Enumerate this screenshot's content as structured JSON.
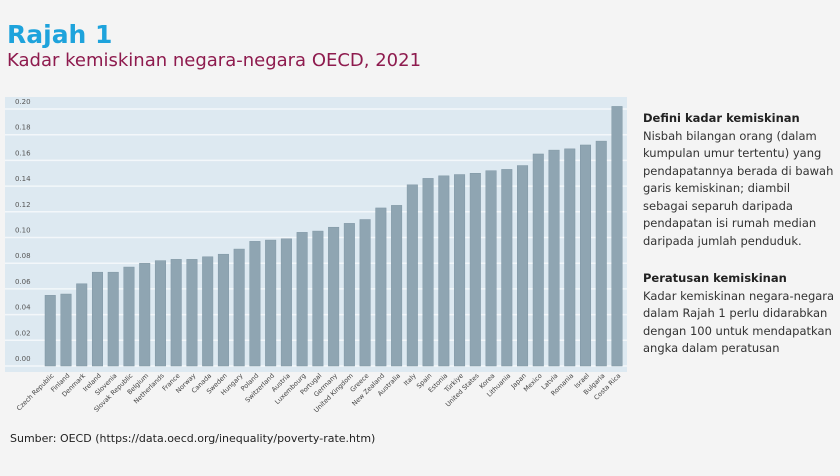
{
  "title": "Rajah 1",
  "subtitle": "Kadar kemiskinan negara-negara OECD, 2021",
  "definition": {
    "heading": "Defini kadar kemiskinan",
    "text": "Nisbah bilangan orang (dalam kumpulan umur tertentu) yang pendapatannya berada di bawah garis kemiskinan; diambil sebagai separuh daripada pendapatan isi rumah median daripada jumlah penduduk."
  },
  "rule": {
    "heading": "Peratusan kemiskinan",
    "text": "Kadar kemiskinan negara-negara dalam Rajah 1 perlu didarabkan dengan 100 untuk mendapatkan angka dalam peratusan"
  },
  "source": "Sumber: OECD (https://data.oecd.org/inequality/poverty-rate.htm)",
  "chart_data": {
    "type": "bar",
    "ylim": [
      0,
      0.2
    ],
    "yticks": [
      "0.00",
      "0.02",
      "0.04",
      "0.06",
      "0.08",
      "0.10",
      "0.12",
      "0.14",
      "0.16",
      "0.18",
      "0.20"
    ],
    "grid": true,
    "colors": {
      "bar": "#8fa5b2",
      "panel": "#dde9f1",
      "grid": "#f3f7fa"
    },
    "categories": [
      "Czech Republic",
      "Finland",
      "Denmark",
      "Ireland",
      "Slovenia",
      "Slovak Republic",
      "Belgium",
      "Netherlands",
      "France",
      "Norway",
      "Canada",
      "Sweden",
      "Hungary",
      "Poland",
      "Switzerland",
      "Austria",
      "Luxembourg",
      "Portugal",
      "Germany",
      "United Kingdom",
      "Greece",
      "New Zealand",
      "Australia",
      "Italy",
      "Spain",
      "Estonia",
      "Türkiye",
      "United States",
      "Korea",
      "Lithuania",
      "Japan",
      "Mexico",
      "Latvia",
      "Romania",
      "Israel",
      "Bulgaria",
      "Costa Rica"
    ],
    "values": [
      0.055,
      0.056,
      0.064,
      0.073,
      0.073,
      0.077,
      0.08,
      0.082,
      0.083,
      0.083,
      0.085,
      0.087,
      0.091,
      0.097,
      0.098,
      0.099,
      0.104,
      0.105,
      0.108,
      0.111,
      0.114,
      0.123,
      0.125,
      0.141,
      0.146,
      0.148,
      0.149,
      0.15,
      0.152,
      0.153,
      0.156,
      0.165,
      0.168,
      0.169,
      0.172,
      0.175,
      0.202
    ]
  }
}
